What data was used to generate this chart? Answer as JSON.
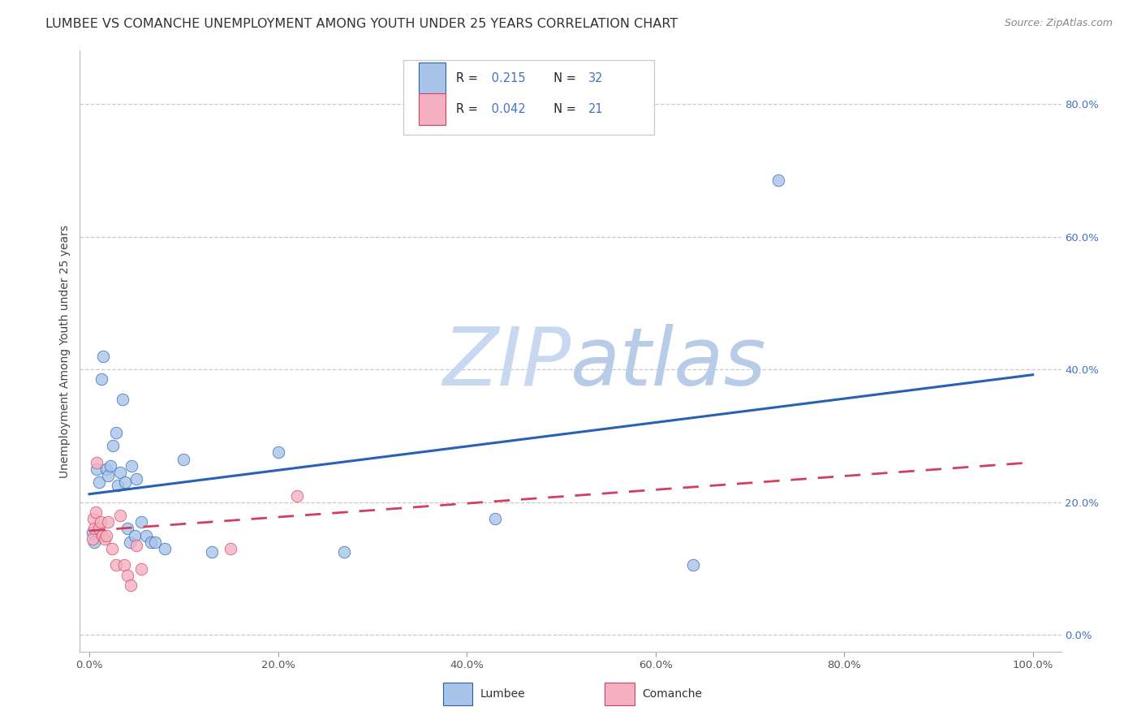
{
  "title": "LUMBEE VS COMANCHE UNEMPLOYMENT AMONG YOUTH UNDER 25 YEARS CORRELATION CHART",
  "source": "Source: ZipAtlas.com",
  "ylabel": "Unemployment Among Youth under 25 years",
  "lumbee_R": 0.215,
  "lumbee_N": 32,
  "comanche_R": 0.042,
  "comanche_N": 21,
  "lumbee_color": "#a8c4e8",
  "comanche_color": "#f4b0c0",
  "lumbee_line_color": "#2860b4",
  "comanche_line_color": "#d04060",
  "background_color": "#ffffff",
  "grid_color": "#c8c8c8",
  "right_axis_color": "#4472c4",
  "watermark_color": "#dde8f5",
  "lumbee_x": [
    0.003,
    0.005,
    0.008,
    0.01,
    0.013,
    0.015,
    0.018,
    0.02,
    0.022,
    0.025,
    0.028,
    0.03,
    0.033,
    0.035,
    0.038,
    0.04,
    0.043,
    0.045,
    0.048,
    0.05,
    0.055,
    0.06,
    0.065,
    0.07,
    0.08,
    0.1,
    0.13,
    0.2,
    0.27,
    0.43,
    0.64,
    0.73
  ],
  "lumbee_y": [
    0.155,
    0.14,
    0.25,
    0.23,
    0.385,
    0.42,
    0.25,
    0.24,
    0.255,
    0.285,
    0.305,
    0.225,
    0.245,
    0.355,
    0.23,
    0.16,
    0.14,
    0.255,
    0.15,
    0.235,
    0.17,
    0.15,
    0.14,
    0.14,
    0.13,
    0.265,
    0.125,
    0.275,
    0.125,
    0.175,
    0.105,
    0.685
  ],
  "comanche_x": [
    0.003,
    0.004,
    0.005,
    0.007,
    0.008,
    0.01,
    0.012,
    0.014,
    0.016,
    0.018,
    0.02,
    0.024,
    0.028,
    0.033,
    0.037,
    0.04,
    0.044,
    0.05,
    0.055,
    0.15,
    0.22
  ],
  "comanche_y": [
    0.145,
    0.175,
    0.16,
    0.185,
    0.26,
    0.16,
    0.17,
    0.15,
    0.145,
    0.15,
    0.17,
    0.13,
    0.105,
    0.18,
    0.105,
    0.09,
    0.075,
    0.135,
    0.1,
    0.13,
    0.21
  ],
  "marker_size": 110,
  "title_fontsize": 11.5,
  "axis_label_fontsize": 10,
  "tick_fontsize": 9.5,
  "legend_fontsize": 10.5,
  "right_yticks": [
    0.0,
    0.2,
    0.4,
    0.6,
    0.8
  ],
  "xticks": [
    0.0,
    0.2,
    0.4,
    0.6,
    0.8,
    1.0
  ]
}
